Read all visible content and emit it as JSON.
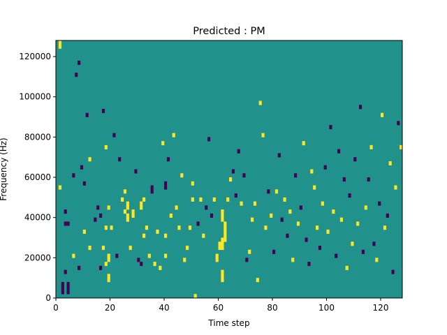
{
  "chart_data": {
    "type": "heatmap",
    "title": "Predicted : PM",
    "xlabel": "Time step",
    "ylabel": "Frequency (Hz)",
    "xlim": [
      0,
      128
    ],
    "ylim": [
      0,
      128000
    ],
    "xticks": [
      0,
      20,
      40,
      60,
      80,
      100,
      120
    ],
    "yticks": [
      0,
      20000,
      40000,
      60000,
      80000,
      100000,
      120000
    ],
    "grid": false,
    "n_time_steps": 128,
    "n_frequency_bins": 64,
    "frequency_bin_width_hz": 2000,
    "classes": [
      {
        "value": 0,
        "color": "#440154"
      },
      {
        "value": 1,
        "color": "#21918c"
      },
      {
        "value": 2,
        "color": "#fde725"
      }
    ],
    "background_value": 1,
    "cells": [
      [
        1,
        63,
        2
      ],
      [
        1,
        62,
        2
      ],
      [
        1,
        27,
        2
      ],
      [
        2,
        3,
        0
      ],
      [
        2,
        2,
        0
      ],
      [
        2,
        1,
        0
      ],
      [
        3,
        21,
        0
      ],
      [
        3,
        18,
        0
      ],
      [
        3,
        6,
        0
      ],
      [
        4,
        18,
        0
      ],
      [
        4,
        3,
        0
      ],
      [
        4,
        2,
        0
      ],
      [
        4,
        1,
        0
      ],
      [
        6,
        10,
        2
      ],
      [
        6,
        30,
        0
      ],
      [
        7,
        55,
        0
      ],
      [
        8,
        58,
        0
      ],
      [
        8,
        7,
        0
      ],
      [
        9,
        32,
        0
      ],
      [
        10,
        16,
        2
      ],
      [
        10,
        28,
        0
      ],
      [
        11,
        45,
        0
      ],
      [
        12,
        34,
        2
      ],
      [
        12,
        12,
        2
      ],
      [
        14,
        19,
        0
      ],
      [
        15,
        22,
        0
      ],
      [
        16,
        20,
        0
      ],
      [
        16,
        7,
        0
      ],
      [
        17,
        12,
        2
      ],
      [
        17,
        46,
        0
      ],
      [
        18,
        37,
        2
      ],
      [
        18,
        17,
        2
      ],
      [
        18,
        8,
        2
      ],
      [
        19,
        4,
        2
      ],
      [
        19,
        5,
        2
      ],
      [
        19,
        9,
        2
      ],
      [
        19,
        10,
        2
      ],
      [
        19,
        22,
        2
      ],
      [
        20,
        17,
        2
      ],
      [
        21,
        40,
        0
      ],
      [
        22,
        10,
        0
      ],
      [
        23,
        34,
        0
      ],
      [
        24,
        24,
        2
      ],
      [
        25,
        26,
        2
      ],
      [
        25,
        21,
        2
      ],
      [
        26,
        19,
        2
      ],
      [
        26,
        20,
        2
      ],
      [
        26,
        22,
        2
      ],
      [
        26,
        23,
        2
      ],
      [
        27,
        12,
        2
      ],
      [
        28,
        20,
        2
      ],
      [
        28,
        21,
        2
      ],
      [
        29,
        31,
        0
      ],
      [
        30,
        9,
        0
      ],
      [
        31,
        8,
        0
      ],
      [
        31,
        22,
        2
      ],
      [
        31,
        23,
        2
      ],
      [
        32,
        15,
        2
      ],
      [
        32,
        24,
        2
      ],
      [
        33,
        17,
        2
      ],
      [
        34,
        10,
        2
      ],
      [
        35,
        26,
        0
      ],
      [
        35,
        27,
        0
      ],
      [
        36,
        8,
        2
      ],
      [
        37,
        16,
        2
      ],
      [
        38,
        7,
        2
      ],
      [
        39,
        38,
        2
      ],
      [
        40,
        10,
        2
      ],
      [
        40,
        15,
        2
      ],
      [
        40,
        27,
        0
      ],
      [
        40,
        28,
        0
      ],
      [
        41,
        34,
        0
      ],
      [
        42,
        20,
        2
      ],
      [
        43,
        40,
        2
      ],
      [
        44,
        22,
        2
      ],
      [
        45,
        17,
        2
      ],
      [
        46,
        30,
        2
      ],
      [
        47,
        9,
        2
      ],
      [
        48,
        12,
        2
      ],
      [
        49,
        17,
        2
      ],
      [
        50,
        24,
        2
      ],
      [
        50,
        28,
        2
      ],
      [
        51,
        0,
        2
      ],
      [
        52,
        18,
        0
      ],
      [
        53,
        24,
        2
      ],
      [
        54,
        15,
        2
      ],
      [
        55,
        22,
        0
      ],
      [
        56,
        39,
        0
      ],
      [
        57,
        20,
        0
      ],
      [
        58,
        24,
        2
      ],
      [
        59,
        9,
        2
      ],
      [
        59,
        10,
        2
      ],
      [
        60,
        12,
        2
      ],
      [
        60,
        13,
        2
      ],
      [
        61,
        4,
        2
      ],
      [
        61,
        5,
        2
      ],
      [
        61,
        6,
        2
      ],
      [
        61,
        12,
        2
      ],
      [
        61,
        13,
        2
      ],
      [
        61,
        14,
        2
      ],
      [
        61,
        19,
        2
      ],
      [
        61,
        20,
        2
      ],
      [
        61,
        21,
        2
      ],
      [
        62,
        14,
        2
      ],
      [
        62,
        15,
        2
      ],
      [
        62,
        16,
        2
      ],
      [
        62,
        17,
        2
      ],
      [
        62,
        18,
        2
      ],
      [
        63,
        24,
        2
      ],
      [
        64,
        29,
        2
      ],
      [
        65,
        31,
        0
      ],
      [
        66,
        25,
        0
      ],
      [
        67,
        36,
        0
      ],
      [
        68,
        23,
        2
      ],
      [
        69,
        30,
        0
      ],
      [
        70,
        9,
        0
      ],
      [
        71,
        11,
        2
      ],
      [
        72,
        19,
        2
      ],
      [
        73,
        23,
        2
      ],
      [
        74,
        4,
        2
      ],
      [
        75,
        48,
        2
      ],
      [
        76,
        40,
        2
      ],
      [
        77,
        17,
        2
      ],
      [
        78,
        26,
        0
      ],
      [
        79,
        20,
        2
      ],
      [
        80,
        11,
        0
      ],
      [
        81,
        26,
        2
      ],
      [
        82,
        35,
        0
      ],
      [
        83,
        19,
        0
      ],
      [
        84,
        24,
        2
      ],
      [
        85,
        15,
        0
      ],
      [
        86,
        21,
        2
      ],
      [
        87,
        9,
        2
      ],
      [
        88,
        30,
        0
      ],
      [
        89,
        18,
        2
      ],
      [
        90,
        22,
        0
      ],
      [
        91,
        38,
        2
      ],
      [
        92,
        14,
        0
      ],
      [
        93,
        8,
        0
      ],
      [
        94,
        31,
        2
      ],
      [
        95,
        27,
        2
      ],
      [
        96,
        17,
        2
      ],
      [
        97,
        12,
        0
      ],
      [
        98,
        23,
        2
      ],
      [
        99,
        32,
        0
      ],
      [
        100,
        16,
        2
      ],
      [
        101,
        42,
        0
      ],
      [
        102,
        21,
        2
      ],
      [
        103,
        10,
        0
      ],
      [
        104,
        36,
        0
      ],
      [
        105,
        19,
        2
      ],
      [
        106,
        29,
        0
      ],
      [
        107,
        7,
        2
      ],
      [
        108,
        25,
        0
      ],
      [
        109,
        13,
        2
      ],
      [
        110,
        34,
        0
      ],
      [
        111,
        18,
        2
      ],
      [
        112,
        47,
        0
      ],
      [
        113,
        11,
        0
      ],
      [
        114,
        22,
        2
      ],
      [
        115,
        29,
        0
      ],
      [
        116,
        37,
        2
      ],
      [
        117,
        13,
        0
      ],
      [
        118,
        9,
        2
      ],
      [
        119,
        23,
        0
      ],
      [
        120,
        45,
        2
      ],
      [
        121,
        17,
        2
      ],
      [
        122,
        20,
        0
      ],
      [
        123,
        33,
        2
      ],
      [
        124,
        6,
        0
      ],
      [
        125,
        27,
        2
      ],
      [
        126,
        43,
        0
      ],
      [
        127,
        37,
        2
      ]
    ]
  }
}
